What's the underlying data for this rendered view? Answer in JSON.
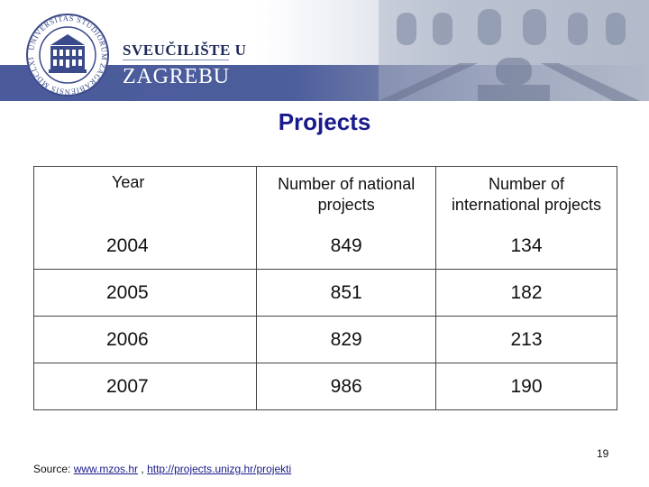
{
  "header": {
    "university_line1": "SVEUČILIŠTE U",
    "university_line2": "ZAGREBU",
    "seal_text": "UNIVERSITAS STUDIORUM ZAGRABIENSIS MDCLXIX"
  },
  "title": "Projects",
  "table": {
    "headers": [
      "Year",
      "Number of national projects",
      "Number of international projects"
    ],
    "rows": [
      {
        "year": "2004",
        "national": "849",
        "international": "134"
      },
      {
        "year": "2005",
        "national": "851",
        "international": "182"
      },
      {
        "year": "2006",
        "national": "829",
        "international": "213"
      },
      {
        "year": "2007",
        "national": "986",
        "international": "190"
      }
    ]
  },
  "footer": {
    "source_label": "Source:",
    "link1": "www.mzos.hr",
    "separator": ",",
    "link2": "http://projects.unizg.hr/projekti",
    "page_number": "19"
  },
  "colors": {
    "title": "#1a1a8c",
    "header_band": "#4a5a9a",
    "university_text": "#1e2a5a"
  }
}
